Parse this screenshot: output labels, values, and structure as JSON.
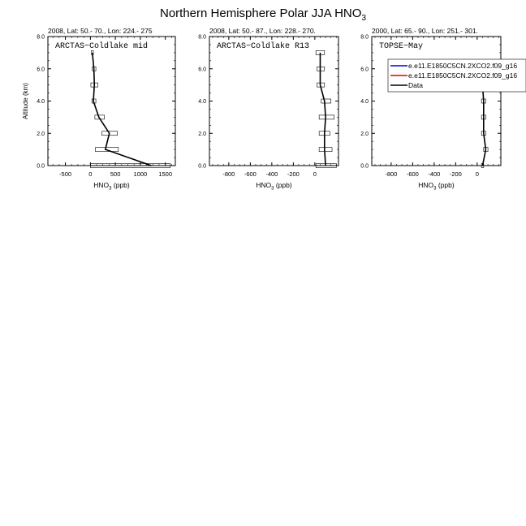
{
  "title": {
    "text": "Northern Hemisphere Polar JJA HNO",
    "subscript": "3"
  },
  "chart_data": [
    {
      "type": "line",
      "subtitle": "2008, Lat:  50.- 70., Lon: 224.- 275",
      "campaign": "ARCTAS−Coldlake mid",
      "xlabel": "HNO",
      "xlabel_sub": "3",
      "xlabel_unit": " (ppb)",
      "ylabel": "Altitude (km)",
      "xlim": [
        -850,
        1700
      ],
      "ylim": [
        0,
        8
      ],
      "xticks": [
        -500,
        0,
        500,
        1000,
        1500
      ],
      "yticks": [
        0,
        2,
        4,
        6,
        8
      ],
      "ytick_labels": [
        "0.0",
        "2.0",
        "4.0",
        "6.0",
        "8.0"
      ],
      "series": [
        {
          "name": "Data",
          "color": "#000000",
          "altitude": [
            0,
            1,
            2,
            3,
            4,
            5,
            6,
            7
          ],
          "values": [
            1220,
            300,
            380,
            170,
            60,
            80,
            70,
            40
          ],
          "err_low": [
            0,
            100,
            230,
            90,
            30,
            10,
            40,
            20
          ],
          "err_high": [
            1600,
            560,
            540,
            280,
            110,
            150,
            110,
            60
          ]
        }
      ]
    },
    {
      "type": "line",
      "subtitle": "2008, Lat:  50.- 87., Lon: 228.- 270.",
      "campaign": "ARCTAS−Coldlake R13",
      "xlabel": "HNO",
      "xlabel_sub": "3",
      "xlabel_unit": " (ppb)",
      "xlim": [
        -980,
        220
      ],
      "ylim": [
        0,
        8
      ],
      "xticks": [
        -800,
        -600,
        -400,
        -200,
        0
      ],
      "yticks": [
        0,
        2,
        4,
        6,
        8
      ],
      "ytick_labels": [
        "0.0",
        "2.0",
        "4.0",
        "6.0",
        "8.0"
      ],
      "series": [
        {
          "name": "Data",
          "color": "#000000",
          "altitude": [
            0,
            1,
            2,
            3,
            4,
            5,
            6,
            7
          ],
          "values": [
            100,
            90,
            90,
            100,
            90,
            50,
            50,
            50
          ],
          "err_low": [
            10,
            40,
            40,
            40,
            60,
            20,
            20,
            10
          ],
          "err_high": [
            200,
            160,
            140,
            180,
            150,
            90,
            90,
            90
          ]
        }
      ]
    },
    {
      "type": "line",
      "subtitle": "2000, Lat:  65.- 90., Lon: 251.- 301.",
      "campaign": "TOPSE−May",
      "xlabel": "HNO",
      "xlabel_sub": "3",
      "xlabel_unit": " (ppb)",
      "xlim": [
        -980,
        220
      ],
      "ylim": [
        0,
        8
      ],
      "xticks": [
        -800,
        -600,
        -400,
        -200,
        0
      ],
      "yticks": [
        0,
        2,
        4,
        6,
        8
      ],
      "ytick_labels": [
        "0.0",
        "2.0",
        "4.0",
        "6.0",
        "8.0"
      ],
      "legend_position": "top-right",
      "legend": [
        {
          "name": "e.e11.E1850C5CN.2XCO2.f09_g16",
          "color": "#0000cc"
        },
        {
          "name": "e.e11.E1850C5CN.2XCO2.f09_g16",
          "color": "#dd0000"
        },
        {
          "name": "Data",
          "color": "#000000"
        }
      ],
      "series": [
        {
          "name": "Data",
          "color": "#000000",
          "altitude": [
            0,
            1,
            2,
            3,
            4,
            5,
            6
          ],
          "values": [
            50,
            80,
            60,
            60,
            60,
            50,
            40
          ],
          "err_low": [
            40,
            60,
            40,
            40,
            40,
            30,
            20
          ],
          "err_high": [
            60,
            100,
            80,
            80,
            80,
            70,
            60
          ]
        }
      ]
    }
  ]
}
